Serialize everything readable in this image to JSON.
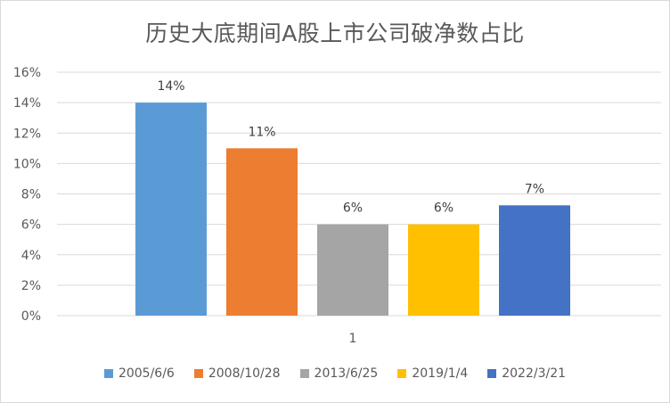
{
  "chart_data": {
    "type": "bar",
    "title": "历史大底期间A股上市公司破净数占比",
    "categories": [
      "1"
    ],
    "series": [
      {
        "name": "2005/6/6",
        "value": 0.14,
        "label": "14%",
        "color": "#5B9BD5"
      },
      {
        "name": "2008/10/28",
        "value": 0.11,
        "label": "11%",
        "color": "#ED7D31"
      },
      {
        "name": "2013/6/25",
        "value": 0.06,
        "label": "6%",
        "color": "#A5A5A5"
      },
      {
        "name": "2019/1/4",
        "value": 0.06,
        "label": "6%",
        "color": "#FFC000"
      },
      {
        "name": "2022/3/21",
        "value": 0.0725,
        "label": "7%",
        "color": "#4472C4"
      }
    ],
    "yticks": [
      "0%",
      "2%",
      "4%",
      "6%",
      "8%",
      "10%",
      "12%",
      "14%",
      "16%"
    ],
    "ylim": [
      0,
      0.16
    ],
    "grid": true,
    "legend_position": "bottom"
  }
}
